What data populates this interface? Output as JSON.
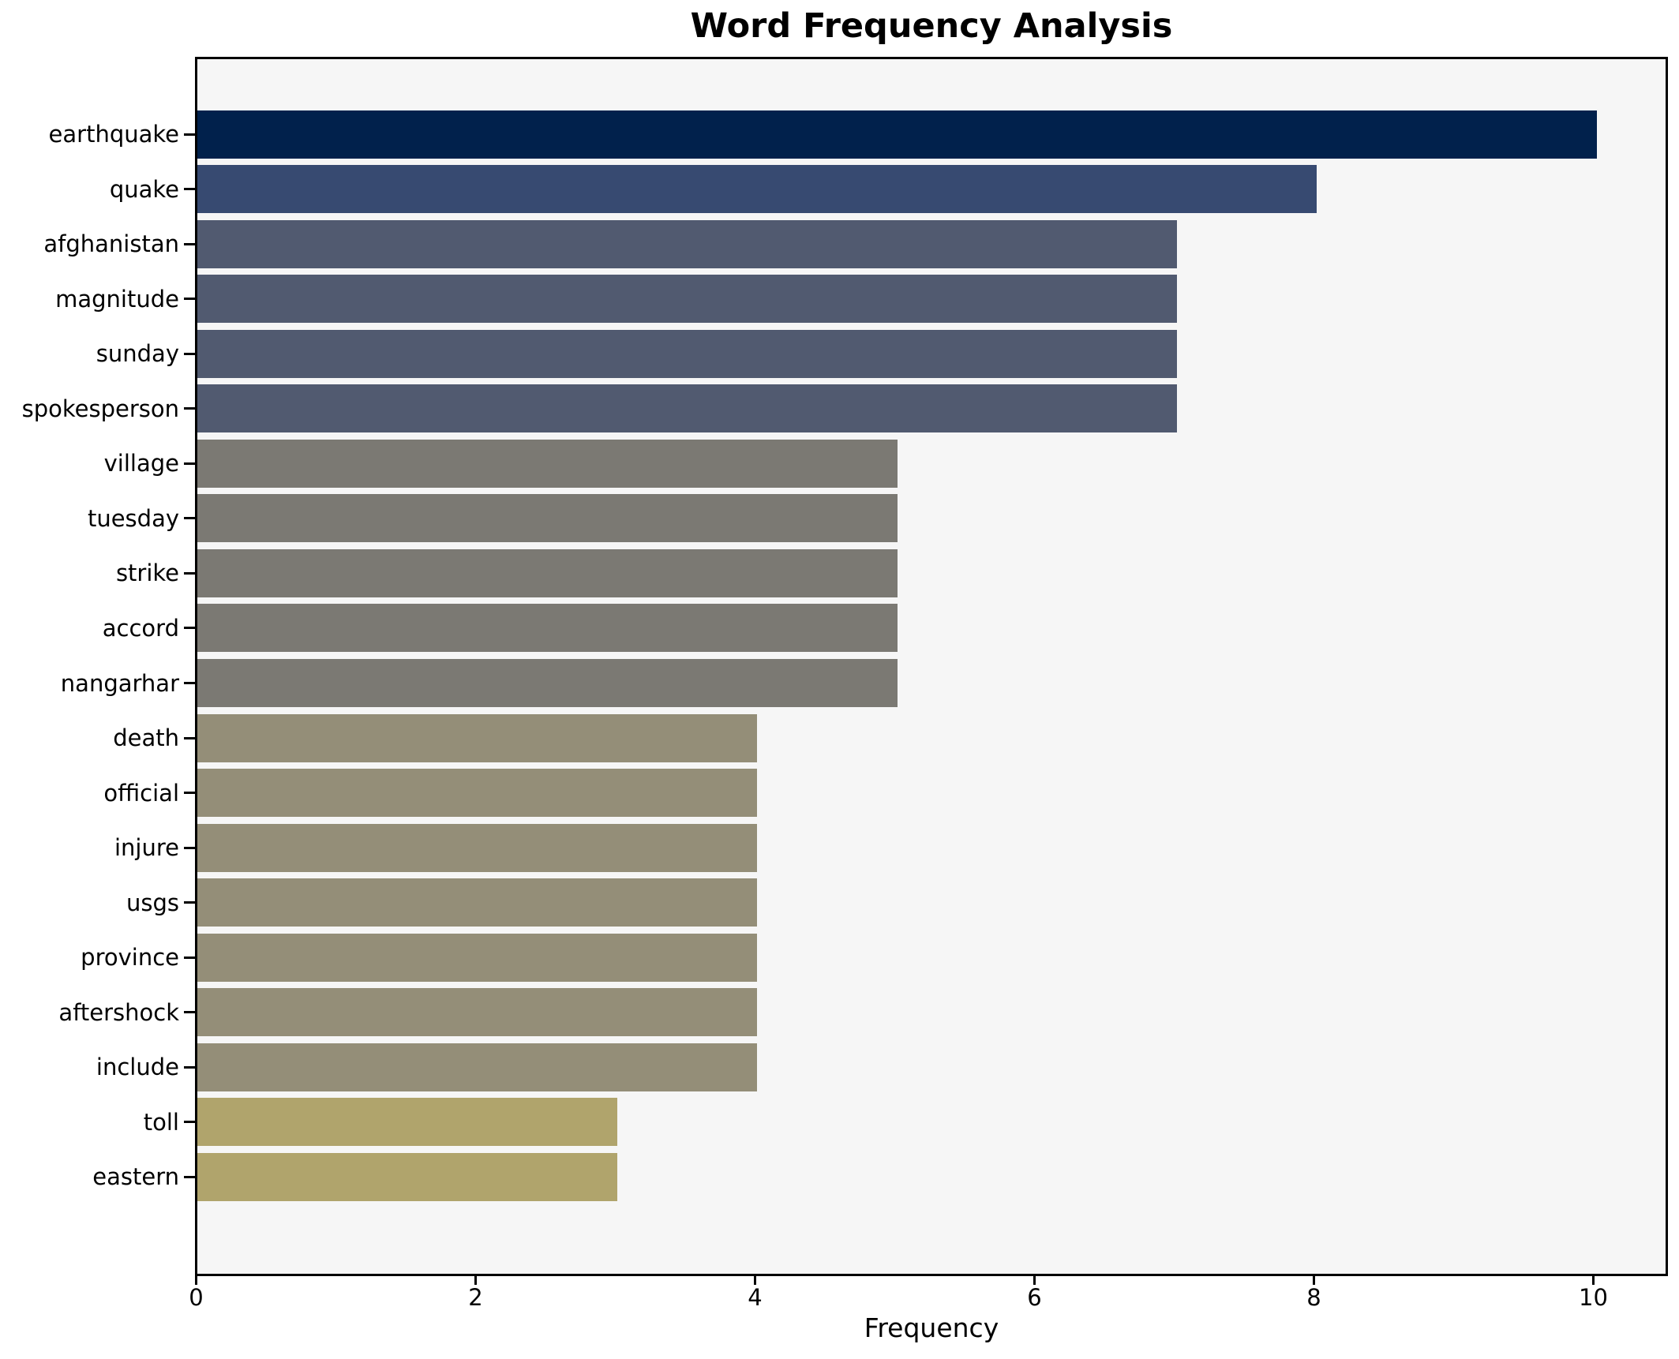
{
  "chart_data": {
    "type": "bar",
    "orientation": "horizontal",
    "title": "Word Frequency Analysis",
    "xlabel": "Frequency",
    "ylabel": "",
    "categories": [
      "earthquake",
      "quake",
      "afghanistan",
      "magnitude",
      "sunday",
      "spokesperson",
      "village",
      "tuesday",
      "strike",
      "accord",
      "nangarhar",
      "death",
      "official",
      "injure",
      "usgs",
      "province",
      "aftershock",
      "include",
      "toll",
      "eastern"
    ],
    "values": [
      10,
      8,
      7,
      7,
      7,
      7,
      5,
      5,
      5,
      5,
      5,
      4,
      4,
      4,
      4,
      4,
      4,
      4,
      3,
      3
    ],
    "bar_colors": [
      "#01214c",
      "#374a71",
      "#515a70",
      "#515a70",
      "#515a70",
      "#515a70",
      "#7b7973",
      "#7b7973",
      "#7b7973",
      "#7b7973",
      "#7b7973",
      "#948e78",
      "#948e78",
      "#948e78",
      "#948e78",
      "#948e78",
      "#948e78",
      "#948e78",
      "#b0a46c",
      "#b0a46c"
    ],
    "xlim": [
      0,
      10.5
    ],
    "x_ticks": [
      0,
      2,
      4,
      6,
      8,
      10
    ],
    "grid": false,
    "legend": null,
    "plot_background": "#f6f6f6",
    "figure_background": "#ffffff",
    "spine_color": "#000000",
    "text_color": "#000000"
  }
}
